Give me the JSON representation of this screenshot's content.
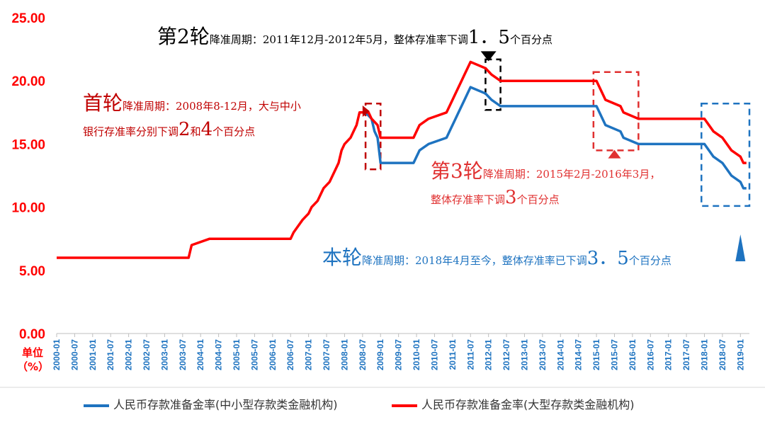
{
  "chart_data": {
    "type": "line",
    "y_unit_label": "单位",
    "y_unit": "（%）",
    "ylim": [
      0,
      25
    ],
    "yticks": [
      "0.00",
      "5.00",
      "10.00",
      "15.00",
      "20.00",
      "25.00"
    ],
    "xticks": [
      "2000-01",
      "2000-07",
      "2001-01",
      "2001-07",
      "2002-01",
      "2002-07",
      "2003-01",
      "2003-07",
      "2004-01",
      "2004-07",
      "2005-01",
      "2005-07",
      "2006-01",
      "2006-07",
      "2007-01",
      "2007-07",
      "2008-01",
      "2008-07",
      "2009-01",
      "2009-07",
      "2010-01",
      "2010-07",
      "2011-01",
      "2011-07",
      "2012-01",
      "2012-07",
      "2013-01",
      "2013-07",
      "2014-01",
      "2014-07",
      "2015-01",
      "2015-07",
      "2016-01",
      "2016-07",
      "2017-01",
      "2017-07",
      "2018-01",
      "2018-07",
      "2019-01"
    ],
    "grid": false,
    "legend_position": "bottom",
    "series": [
      {
        "name": "人民币存款准备金率(中小型存款类金融机构)",
        "color": "#1e73c0",
        "points": [
          [
            "2008-08",
            17.5
          ],
          [
            "2008-10",
            17.0
          ],
          [
            "2008-11",
            16.0
          ],
          [
            "2008-12",
            15.5
          ],
          [
            "2009-01",
            13.5
          ],
          [
            "2009-12",
            13.5
          ],
          [
            "2010-01",
            14.0
          ],
          [
            "2010-02",
            14.5
          ],
          [
            "2010-05",
            15.0
          ],
          [
            "2010-11",
            15.5
          ],
          [
            "2010-12",
            16.0
          ],
          [
            "2011-01",
            16.5
          ],
          [
            "2011-02",
            17.0
          ],
          [
            "2011-03",
            17.5
          ],
          [
            "2011-04",
            18.0
          ],
          [
            "2011-05",
            18.5
          ],
          [
            "2011-06",
            19.0
          ],
          [
            "2011-07",
            19.5
          ],
          [
            "2011-12",
            19.0
          ],
          [
            "2012-02",
            18.5
          ],
          [
            "2012-05",
            18.0
          ],
          [
            "2015-01",
            18.0
          ],
          [
            "2015-02",
            17.5
          ],
          [
            "2015-04",
            16.5
          ],
          [
            "2015-09",
            16.0
          ],
          [
            "2015-10",
            15.5
          ],
          [
            "2016-03",
            15.0
          ],
          [
            "2018-01",
            15.0
          ],
          [
            "2018-04",
            14.0
          ],
          [
            "2018-07",
            13.5
          ],
          [
            "2018-10",
            12.5
          ],
          [
            "2019-01",
            12.0
          ],
          [
            "2019-02",
            11.5
          ],
          [
            "2019-03",
            11.5
          ]
        ]
      },
      {
        "name": "人民币存款准备金率(大型存款类金融机构)",
        "color": "#ff0000",
        "points": [
          [
            "2000-01",
            6.0
          ],
          [
            "2003-09",
            6.0
          ],
          [
            "2003-10",
            7.0
          ],
          [
            "2004-04",
            7.5
          ],
          [
            "2006-07",
            7.5
          ],
          [
            "2006-08",
            8.0
          ],
          [
            "2006-11",
            9.0
          ],
          [
            "2007-01",
            9.5
          ],
          [
            "2007-02",
            10.0
          ],
          [
            "2007-04",
            10.5
          ],
          [
            "2007-05",
            11.0
          ],
          [
            "2007-06",
            11.5
          ],
          [
            "2007-08",
            12.0
          ],
          [
            "2007-09",
            12.5
          ],
          [
            "2007-10",
            13.0
          ],
          [
            "2007-11",
            13.5
          ],
          [
            "2007-12",
            14.5
          ],
          [
            "2008-01",
            15.0
          ],
          [
            "2008-03",
            15.5
          ],
          [
            "2008-04",
            16.0
          ],
          [
            "2008-05",
            16.5
          ],
          [
            "2008-06",
            17.5
          ],
          [
            "2008-09",
            17.5
          ],
          [
            "2008-10",
            17.0
          ],
          [
            "2008-12",
            16.5
          ],
          [
            "2009-01",
            15.5
          ],
          [
            "2009-12",
            15.5
          ],
          [
            "2010-01",
            16.0
          ],
          [
            "2010-02",
            16.5
          ],
          [
            "2010-05",
            17.0
          ],
          [
            "2010-11",
            17.5
          ],
          [
            "2010-12",
            18.0
          ],
          [
            "2011-01",
            18.5
          ],
          [
            "2011-02",
            19.0
          ],
          [
            "2011-03",
            19.5
          ],
          [
            "2011-04",
            20.0
          ],
          [
            "2011-05",
            20.5
          ],
          [
            "2011-06",
            21.0
          ],
          [
            "2011-07",
            21.5
          ],
          [
            "2011-12",
            21.0
          ],
          [
            "2012-02",
            20.5
          ],
          [
            "2012-05",
            20.0
          ],
          [
            "2015-01",
            20.0
          ],
          [
            "2015-02",
            19.5
          ],
          [
            "2015-04",
            18.5
          ],
          [
            "2015-09",
            18.0
          ],
          [
            "2015-10",
            17.5
          ],
          [
            "2016-03",
            17.0
          ],
          [
            "2018-01",
            17.0
          ],
          [
            "2018-04",
            16.0
          ],
          [
            "2018-07",
            15.5
          ],
          [
            "2018-10",
            14.5
          ],
          [
            "2019-01",
            14.0
          ],
          [
            "2019-02",
            13.5
          ],
          [
            "2019-03",
            13.5
          ]
        ]
      }
    ],
    "highlight_boxes": [
      {
        "start": "2008-08",
        "end": "2009-01",
        "low": 13.0,
        "high": 18.2,
        "color": "#c00000",
        "style": "dashed"
      },
      {
        "start": "2011-12",
        "end": "2012-05",
        "low": 17.7,
        "high": 21.7,
        "color": "#000000",
        "style": "dashed"
      },
      {
        "start": "2014-12",
        "end": "2016-03",
        "low": 14.5,
        "high": 20.7,
        "color": "#e03030",
        "style": "dashed"
      },
      {
        "start": "2017-12",
        "end": "2019-04",
        "low": 10.1,
        "high": 18.2,
        "color": "#1e73c0",
        "style": "dashed"
      }
    ],
    "pointer_marks": [
      {
        "x": "2008-07",
        "y": 17.6,
        "dir": "right",
        "color": "#c00000"
      },
      {
        "x": "2012-01",
        "y": 21.95,
        "dir": "down",
        "color": "#000000"
      },
      {
        "x": "2015-07",
        "y": 14.2,
        "dir": "up",
        "color": "#e03030"
      },
      {
        "x": "2019-01",
        "y": 7.4,
        "dir": "up",
        "color": "#1e73c0",
        "tall": true
      }
    ]
  },
  "annotations": {
    "round2": {
      "big": "第2轮",
      "small": "降准周期：2011年12月-2012年5月，整体存准率下调",
      "num": "1．5",
      "tail": "个百分点"
    },
    "round1": {
      "big": "首轮",
      "small": "降准周期：2008年8-12月，大与中小",
      "line2a": "银行存准率分别下调",
      "n1": "2",
      "and": "和",
      "n2": "4",
      "tail": "个百分点"
    },
    "round3": {
      "big": "第3轮",
      "small": "降准周期：2015年2月-2016年3月，",
      "line2a": "整体存准率下调",
      "num": "3",
      "tail": "个百分点"
    },
    "round4": {
      "big": "本轮",
      "small": "降准周期：2018年4月至今，整体存准率已下调",
      "num": "3．5",
      "tail": "个百分点"
    }
  },
  "legend": {
    "item1": "人民币存款准备金率(中小型存款类金融机构)",
    "item2": "人民币存款准备金率(大型存款类金融机构)"
  }
}
